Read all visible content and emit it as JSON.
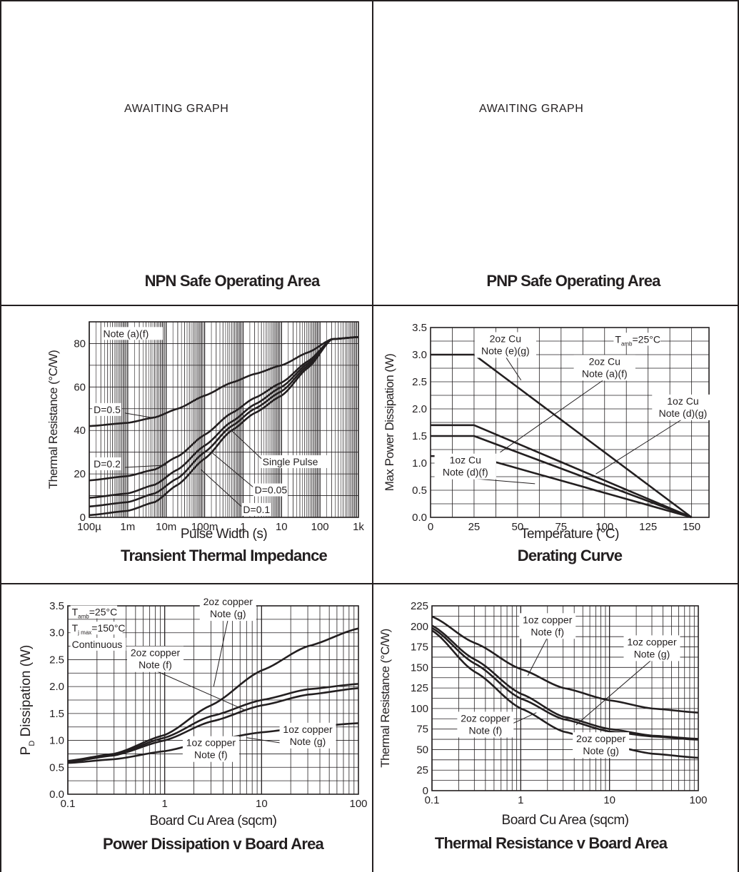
{
  "placeholders": {
    "npn": {
      "text": "AWAITING GRAPH",
      "title": "NPN Safe Operating Area"
    },
    "pnp": {
      "text": "AWAITING GRAPH",
      "title": "PNP Safe Operating Area"
    }
  },
  "chart_data": [
    {
      "id": "transient",
      "type": "line",
      "title": "Transient Thermal Impedance",
      "xlabel": "Pulse Width (s)",
      "ylabel": "Thermal Resistance (°C/W)",
      "xscale": "log",
      "xlim": [
        0.0001,
        1000
      ],
      "ylim": [
        0,
        90
      ],
      "xticks": [
        {
          "v": 0.0001,
          "label": "100µ"
        },
        {
          "v": 0.001,
          "label": "1m"
        },
        {
          "v": 0.01,
          "label": "10m"
        },
        {
          "v": 0.1,
          "label": "100m"
        },
        {
          "v": 1,
          "label": "1"
        },
        {
          "v": 10,
          "label": "10"
        },
        {
          "v": 100,
          "label": "100"
        },
        {
          "v": 1000,
          "label": "1k"
        }
      ],
      "yticks": [
        {
          "v": 0,
          "label": "0"
        },
        {
          "v": 20,
          "label": "20"
        },
        {
          "v": 40,
          "label": "40"
        },
        {
          "v": 60,
          "label": "60"
        },
        {
          "v": 80,
          "label": "80"
        }
      ],
      "grid": true,
      "series": [
        {
          "name": "D=0.5",
          "x": [
            0.0001,
            0.001,
            0.005,
            0.02,
            0.1,
            0.5,
            2,
            10,
            50,
            200,
            1000
          ],
          "y": [
            42,
            43.5,
            46,
            50,
            56,
            62,
            66,
            70,
            76,
            82,
            83
          ]
        },
        {
          "name": "D=0.2",
          "x": [
            0.0001,
            0.001,
            0.005,
            0.02,
            0.1,
            0.5,
            2,
            10,
            50,
            200,
            1000
          ],
          "y": [
            17,
            19,
            22,
            28,
            38,
            48,
            55,
            62,
            72,
            82,
            83
          ]
        },
        {
          "name": "D=0.1",
          "x": [
            0.0001,
            0.001,
            0.005,
            0.02,
            0.1,
            0.5,
            2,
            10,
            50,
            200,
            1000
          ],
          "y": [
            9,
            11,
            15,
            22,
            33,
            44,
            52,
            60,
            71,
            82,
            83
          ]
        },
        {
          "name": "D=0.05",
          "x": [
            0.0001,
            0.001,
            0.005,
            0.02,
            0.1,
            0.5,
            2,
            10,
            50,
            200,
            1000
          ],
          "y": [
            5,
            7,
            11,
            18,
            30,
            42,
            50,
            58,
            70,
            82,
            83
          ]
        },
        {
          "name": "Single Pulse",
          "x": [
            0.0001,
            0.001,
            0.005,
            0.02,
            0.1,
            0.5,
            2,
            10,
            50,
            200,
            1000
          ],
          "y": [
            1,
            3,
            7,
            15,
            27,
            40,
            48,
            56,
            69,
            82,
            83
          ]
        }
      ],
      "annotations": [
        {
          "text": "Note (a)(f)",
          "x": 0.00023,
          "y": 83
        },
        {
          "text": "D=0.5",
          "x": 0.00013,
          "y": 48
        },
        {
          "text": "D=0.2",
          "x": 0.00013,
          "y": 23
        },
        {
          "text": "Single Pulse",
          "x": 3.2,
          "y": 24
        },
        {
          "text": "D=0.05",
          "x": 2.0,
          "y": 11
        },
        {
          "text": "D=0.1",
          "x": 1.0,
          "y": 2
        }
      ]
    },
    {
      "id": "derating",
      "type": "line",
      "title": "Derating Curve",
      "xlabel": "Temperature (°C)",
      "ylabel": "Max Power Dissipation (W)",
      "xscale": "linear",
      "xlim": [
        0,
        160
      ],
      "ylim": [
        0,
        3.5
      ],
      "xticks": [
        {
          "v": 0,
          "label": "0"
        },
        {
          "v": 25,
          "label": "25"
        },
        {
          "v": 50,
          "label": "50"
        },
        {
          "v": 75,
          "label": "75"
        },
        {
          "v": 100,
          "label": "100"
        },
        {
          "v": 125,
          "label": "125"
        },
        {
          "v": 150,
          "label": "150"
        }
      ],
      "yticks": [
        {
          "v": 0,
          "label": "0.0"
        },
        {
          "v": 0.5,
          "label": "0.5"
        },
        {
          "v": 1,
          "label": "1.0"
        },
        {
          "v": 1.5,
          "label": "1.5"
        },
        {
          "v": 2,
          "label": "2.0"
        },
        {
          "v": 2.5,
          "label": "2.5"
        },
        {
          "v": 3,
          "label": "3.0"
        },
        {
          "v": 3.5,
          "label": "3.5"
        }
      ],
      "grid": true,
      "series": [
        {
          "name": "2oz Cu Note (e)(g)",
          "x": [
            0,
            25,
            150
          ],
          "y": [
            3.0,
            3.0,
            0
          ]
        },
        {
          "name": "2oz Cu Note (a)(f)",
          "x": [
            0,
            25,
            150
          ],
          "y": [
            1.7,
            1.7,
            0
          ]
        },
        {
          "name": "1oz Cu Note (d)(g)",
          "x": [
            0,
            25,
            150
          ],
          "y": [
            1.5,
            1.5,
            0
          ]
        },
        {
          "name": "1oz Cu Note (d)(f)",
          "x": [
            0,
            25,
            150
          ],
          "y": [
            1.13,
            1.13,
            0
          ]
        }
      ],
      "annotations": [
        {
          "text": "T",
          "sub": "amb",
          "rest": "=25°C",
          "x": 106,
          "y": 3.22
        }
      ]
    },
    {
      "id": "pd-board",
      "type": "line",
      "title": "Power Dissipation v Board Area",
      "xlabel": "Board Cu Area (sqcm)",
      "ylabel": "P",
      "ylabel_sub": "D",
      "ylabel_rest": " Dissipation (W)",
      "xscale": "log",
      "xlim": [
        0.1,
        100
      ],
      "ylim": [
        0,
        3.5
      ],
      "xticks": [
        {
          "v": 0.1,
          "label": "0.1"
        },
        {
          "v": 1,
          "label": "1"
        },
        {
          "v": 10,
          "label": "10"
        },
        {
          "v": 100,
          "label": "100"
        }
      ],
      "yticks": [
        {
          "v": 0,
          "label": "0.0"
        },
        {
          "v": 0.5,
          "label": "0.5"
        },
        {
          "v": 1,
          "label": "1.0"
        },
        {
          "v": 1.5,
          "label": "1.5"
        },
        {
          "v": 2,
          "label": "2.0"
        },
        {
          "v": 2.5,
          "label": "2.5"
        },
        {
          "v": 3,
          "label": "3.0"
        },
        {
          "v": 3.5,
          "label": "3.5"
        }
      ],
      "grid": true,
      "series": [
        {
          "name": "2oz copper Note (g)",
          "x": [
            0.1,
            0.3,
            1,
            3,
            10,
            30,
            100
          ],
          "y": [
            0.62,
            0.75,
            1.1,
            1.65,
            2.3,
            2.75,
            3.08
          ]
        },
        {
          "name": "2oz copper Note (f)",
          "x": [
            0.1,
            0.3,
            1,
            3,
            10,
            30,
            100
          ],
          "y": [
            0.6,
            0.73,
            1.05,
            1.45,
            1.75,
            1.95,
            2.05
          ]
        },
        {
          "name": "1oz copper Note (g)",
          "x": [
            0.1,
            0.3,
            1,
            3,
            10,
            30,
            100
          ],
          "y": [
            0.6,
            0.72,
            1.0,
            1.35,
            1.65,
            1.85,
            1.97
          ]
        },
        {
          "name": "1oz copper Note (f)",
          "x": [
            0.1,
            0.3,
            1,
            3,
            10,
            30,
            100
          ],
          "y": [
            0.58,
            0.65,
            0.8,
            1.0,
            1.15,
            1.25,
            1.32
          ]
        }
      ],
      "annotations": [
        {
          "text": "T",
          "sub": "amb",
          "rest": "=25°C",
          "x": 0.11,
          "y": 3.32
        },
        {
          "text": "T",
          "sub": "j max",
          "rest": "=150°C",
          "x": 0.11,
          "y": 3.02
        },
        {
          "text": "Continuous",
          "x": 0.11,
          "y": 2.72
        }
      ]
    },
    {
      "id": "rth-board",
      "type": "line",
      "title": "Thermal Resistance v Board Area",
      "xlabel": "Board Cu Area (sqcm)",
      "ylabel": "Thermal Resistance (°C/W)",
      "xscale": "log",
      "xlim": [
        0.1,
        100
      ],
      "ylim": [
        0,
        225
      ],
      "xticks": [
        {
          "v": 0.1,
          "label": "0.1"
        },
        {
          "v": 1,
          "label": "1"
        },
        {
          "v": 10,
          "label": "10"
        },
        {
          "v": 100,
          "label": "100"
        }
      ],
      "yticks": [
        {
          "v": 0,
          "label": "0"
        },
        {
          "v": 25,
          "label": "25"
        },
        {
          "v": 50,
          "label": "50"
        },
        {
          "v": 75,
          "label": "75"
        },
        {
          "v": 100,
          "label": "100"
        },
        {
          "v": 125,
          "label": "125"
        },
        {
          "v": 150,
          "label": "150"
        },
        {
          "v": 175,
          "label": "175"
        },
        {
          "v": 200,
          "label": "200"
        },
        {
          "v": 225,
          "label": "225"
        }
      ],
      "grid": true,
      "series": [
        {
          "name": "1oz copper Note (f)",
          "x": [
            0.1,
            0.3,
            1,
            3,
            10,
            30,
            100
          ],
          "y": [
            212,
            180,
            148,
            125,
            110,
            100,
            95
          ]
        },
        {
          "name": "1oz copper Note (g)",
          "x": [
            0.1,
            0.3,
            1,
            3,
            10,
            30,
            100
          ],
          "y": [
            201,
            160,
            118,
            90,
            75,
            67,
            63
          ]
        },
        {
          "name": "2oz copper Note (f)",
          "x": [
            0.1,
            0.3,
            1,
            3,
            10,
            30,
            100
          ],
          "y": [
            198,
            155,
            112,
            87,
            72,
            66,
            62
          ]
        },
        {
          "name": "2oz copper Note (g)",
          "x": [
            0.1,
            0.3,
            1,
            3,
            10,
            30,
            100
          ],
          "y": [
            195,
            145,
            100,
            72,
            55,
            45,
            40
          ]
        }
      ],
      "annotations": []
    }
  ]
}
